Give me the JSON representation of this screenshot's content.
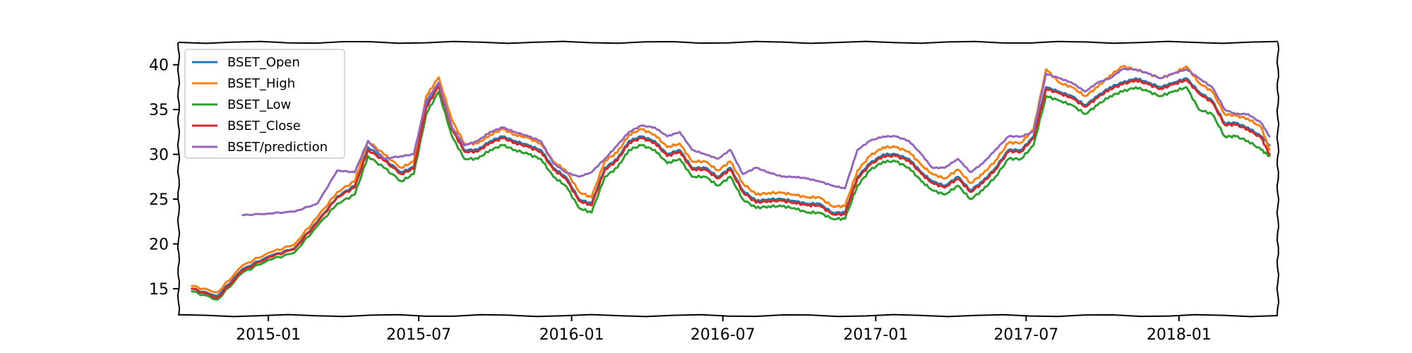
{
  "chart_data": {
    "type": "line",
    "title": "",
    "xlabel": "",
    "ylabel": "",
    "x_axis_type": "date",
    "xlim": [
      "2014-09-15",
      "2018-04-30"
    ],
    "ylim": [
      12,
      42.5
    ],
    "grid": false,
    "legend": {
      "location": "top-left"
    },
    "x_ticks": [
      {
        "date": "2015-01-01",
        "label": "2015-01"
      },
      {
        "date": "2015-07-01",
        "label": "2015-07"
      },
      {
        "date": "2016-01-01",
        "label": "2016-01"
      },
      {
        "date": "2016-07-01",
        "label": "2016-07"
      },
      {
        "date": "2017-01-01",
        "label": "2017-01"
      },
      {
        "date": "2017-07-01",
        "label": "2017-07"
      },
      {
        "date": "2018-01-01",
        "label": "2018-01"
      }
    ],
    "y_ticks": [
      15,
      20,
      25,
      30,
      35,
      40
    ],
    "x": [
      "2014-10-01",
      "2014-11-01",
      "2014-12-01",
      "2015-01-01",
      "2015-02-01",
      "2015-03-01",
      "2015-03-25",
      "2015-04-15",
      "2015-05-01",
      "2015-05-20",
      "2015-06-10",
      "2015-06-25",
      "2015-07-10",
      "2015-07-25",
      "2015-08-10",
      "2015-08-25",
      "2015-09-10",
      "2015-09-25",
      "2015-10-10",
      "2015-10-25",
      "2015-11-10",
      "2015-11-25",
      "2015-12-10",
      "2015-12-25",
      "2016-01-10",
      "2016-01-25",
      "2016-02-10",
      "2016-02-25",
      "2016-03-10",
      "2016-03-25",
      "2016-04-10",
      "2016-04-25",
      "2016-05-10",
      "2016-05-25",
      "2016-06-10",
      "2016-06-25",
      "2016-07-10",
      "2016-07-25",
      "2016-08-10",
      "2016-08-25",
      "2016-09-10",
      "2016-09-25",
      "2016-10-10",
      "2016-10-25",
      "2016-11-10",
      "2016-11-25",
      "2016-12-10",
      "2016-12-25",
      "2017-01-10",
      "2017-01-25",
      "2017-02-10",
      "2017-02-25",
      "2017-03-10",
      "2017-03-25",
      "2017-04-10",
      "2017-04-25",
      "2017-05-10",
      "2017-05-25",
      "2017-06-10",
      "2017-06-25",
      "2017-07-10",
      "2017-07-25",
      "2017-08-10",
      "2017-08-25",
      "2017-09-10",
      "2017-09-25",
      "2017-10-10",
      "2017-10-25",
      "2017-11-10",
      "2017-11-25",
      "2017-12-10",
      "2017-12-25",
      "2018-01-10",
      "2018-01-25",
      "2018-02-10",
      "2018-02-25",
      "2018-03-10",
      "2018-03-25",
      "2018-04-10",
      "2018-04-20"
    ],
    "series": [
      {
        "name": "BSET_Open",
        "color": "#1f77b4",
        "values": [
          15.0,
          14.2,
          17.2,
          18.6,
          19.5,
          22.5,
          25.3,
          26.5,
          30.8,
          29.5,
          28.0,
          28.6,
          35.5,
          37.8,
          33.0,
          30.5,
          30.5,
          31.5,
          32.0,
          31.5,
          31.0,
          30.5,
          28.5,
          27.5,
          25.0,
          24.5,
          28.5,
          29.5,
          31.5,
          32.0,
          31.5,
          30.0,
          30.5,
          28.5,
          28.5,
          27.5,
          28.5,
          26.0,
          24.8,
          25.0,
          25.0,
          24.8,
          24.5,
          24.5,
          23.5,
          23.5,
          27.5,
          29.0,
          30.0,
          30.0,
          29.5,
          28.0,
          27.0,
          26.5,
          27.5,
          26.0,
          27.0,
          28.5,
          30.5,
          30.5,
          32.0,
          37.5,
          37.0,
          36.5,
          35.5,
          36.5,
          37.5,
          38.0,
          38.5,
          38.0,
          37.5,
          38.0,
          38.5,
          37.0,
          36.0,
          33.5,
          33.5,
          33.0,
          32.0,
          31.0
        ]
      },
      {
        "name": "BSET_High",
        "color": "#ff7f0e",
        "values": [
          15.3,
          14.6,
          17.6,
          19.0,
          19.9,
          23.0,
          25.8,
          27.0,
          31.5,
          30.0,
          28.5,
          29.2,
          36.5,
          38.6,
          33.8,
          31.2,
          31.2,
          32.2,
          32.8,
          32.2,
          31.8,
          31.2,
          29.2,
          28.2,
          25.8,
          25.2,
          29.3,
          30.2,
          32.2,
          32.8,
          32.2,
          30.8,
          31.2,
          29.2,
          29.2,
          28.2,
          29.2,
          26.8,
          25.5,
          25.7,
          25.7,
          25.5,
          25.2,
          25.2,
          24.2,
          24.2,
          28.2,
          29.8,
          30.8,
          30.8,
          30.3,
          28.8,
          27.8,
          27.3,
          28.3,
          26.8,
          27.8,
          29.3,
          31.3,
          31.3,
          32.8,
          39.5,
          38.0,
          37.5,
          36.5,
          37.5,
          38.8,
          39.8,
          39.5,
          39.0,
          38.5,
          39.0,
          39.8,
          38.0,
          37.0,
          34.5,
          34.3,
          34.0,
          33.0,
          30.5
        ]
      },
      {
        "name": "BSET_Low",
        "color": "#2ca02c",
        "values": [
          14.7,
          13.8,
          16.8,
          18.2,
          19.0,
          22.0,
          24.5,
          25.5,
          29.8,
          28.5,
          27.0,
          27.8,
          34.5,
          37.0,
          32.0,
          29.5,
          29.5,
          30.5,
          31.0,
          30.5,
          30.0,
          29.5,
          27.5,
          26.5,
          24.0,
          23.5,
          27.5,
          28.5,
          30.5,
          31.0,
          30.5,
          29.0,
          29.5,
          27.5,
          27.5,
          26.5,
          27.5,
          25.0,
          24.0,
          24.2,
          24.2,
          24.0,
          23.5,
          23.5,
          22.8,
          22.8,
          26.5,
          28.2,
          29.2,
          29.2,
          28.5,
          27.0,
          26.0,
          25.5,
          26.5,
          25.0,
          26.0,
          27.5,
          29.5,
          29.5,
          31.0,
          36.5,
          36.0,
          35.5,
          34.5,
          35.5,
          36.5,
          37.0,
          37.5,
          37.0,
          36.5,
          37.0,
          37.5,
          35.0,
          34.5,
          32.0,
          32.0,
          31.5,
          30.5,
          29.8
        ]
      },
      {
        "name": "BSET_Close",
        "color": "#d62728",
        "values": [
          15.0,
          14.0,
          17.0,
          18.5,
          19.4,
          22.4,
          25.2,
          26.3,
          30.5,
          29.3,
          27.8,
          28.4,
          35.2,
          37.6,
          32.8,
          30.3,
          30.3,
          31.3,
          31.8,
          31.3,
          30.8,
          30.3,
          28.3,
          27.3,
          24.8,
          24.3,
          28.3,
          29.3,
          31.3,
          31.8,
          31.3,
          29.8,
          30.3,
          28.3,
          28.3,
          27.3,
          28.3,
          25.8,
          24.6,
          24.8,
          24.8,
          24.6,
          24.3,
          24.3,
          23.3,
          23.3,
          27.3,
          28.8,
          29.8,
          29.8,
          29.3,
          27.8,
          26.8,
          26.3,
          27.3,
          25.8,
          26.8,
          28.3,
          30.3,
          30.3,
          31.8,
          37.3,
          36.8,
          36.3,
          35.3,
          36.3,
          37.3,
          37.8,
          38.3,
          37.8,
          37.3,
          37.8,
          38.3,
          36.8,
          35.8,
          33.3,
          33.3,
          32.8,
          31.8,
          30.0
        ]
      },
      {
        "name": "BSET/prediction",
        "color": "#9467bd",
        "values": [
          null,
          null,
          23.2,
          23.4,
          23.6,
          24.5,
          28.2,
          28.0,
          31.5,
          29.5,
          29.8,
          30.0,
          36.0,
          38.0,
          33.0,
          31.0,
          31.5,
          32.5,
          33.0,
          32.5,
          32.0,
          31.5,
          29.0,
          28.0,
          27.5,
          28.0,
          29.5,
          31.0,
          32.5,
          33.2,
          33.0,
          32.0,
          32.5,
          30.5,
          30.0,
          29.5,
          30.5,
          27.8,
          28.5,
          28.0,
          27.5,
          27.5,
          27.3,
          27.0,
          26.5,
          26.2,
          30.5,
          31.5,
          32.0,
          32.0,
          31.5,
          30.0,
          28.5,
          28.5,
          29.5,
          28.0,
          29.0,
          30.5,
          32.0,
          32.0,
          32.5,
          39.0,
          38.5,
          38.0,
          37.0,
          38.0,
          38.5,
          39.5,
          39.5,
          39.0,
          38.5,
          39.0,
          39.5,
          38.5,
          37.5,
          35.0,
          34.5,
          34.5,
          33.5,
          32.0
        ]
      }
    ]
  }
}
